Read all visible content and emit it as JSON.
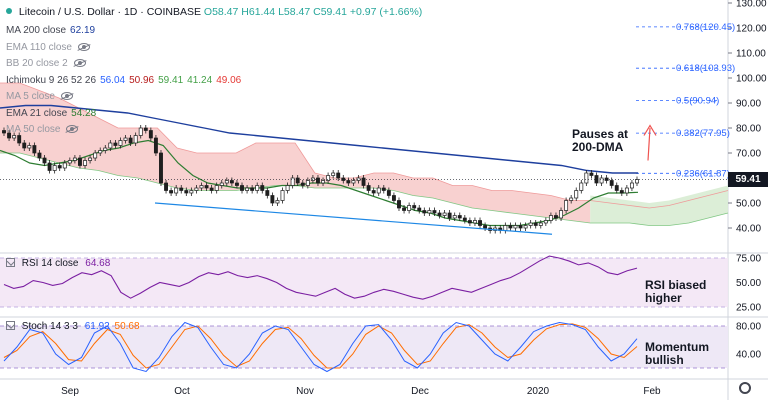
{
  "header": {
    "symbol": "Litecoin / U.S. Dollar · 1D · COINBASE",
    "open": "O58.47",
    "high": "H61.44",
    "low": "L58.47",
    "close": "C59.41",
    "change": "+0.97 (+1.66%)"
  },
  "indicators": [
    {
      "label": "MA 200 close",
      "value": "62.19",
      "value_color": "#1e3f9e",
      "muted": false,
      "eye": false
    },
    {
      "label": "EMA 110 close",
      "value": "",
      "value_color": "#9598a1",
      "muted": true,
      "eye": true
    },
    {
      "label": "BB 20 close 2",
      "value": "",
      "value_color": "#9598a1",
      "muted": true,
      "eye": true
    },
    {
      "label": "Ichimoku 9 26 52 26",
      "value": "",
      "value_color": "#434651",
      "muted": false,
      "eye": false,
      "values": [
        {
          "v": "56.04",
          "c": "#2962ff"
        },
        {
          "v": "50.96",
          "c": "#b71c1c"
        },
        {
          "v": "59.41",
          "c": "#43a047"
        },
        {
          "v": "41.24",
          "c": "#43a047"
        },
        {
          "v": "49.06",
          "c": "#e53935"
        }
      ]
    },
    {
      "label": "MA 5 close",
      "value": "",
      "value_color": "#9598a1",
      "muted": true,
      "eye": true
    },
    {
      "label": "EMA 21 close",
      "value": "54.28",
      "value_color": "#2e7d32",
      "muted": false,
      "eye": false
    },
    {
      "label": "MA 50 close",
      "value": "",
      "value_color": "#9598a1",
      "muted": true,
      "eye": true
    }
  ],
  "annotations": {
    "dma": "Pauses at\n200-DMA",
    "rsi": "RSI biased\nhigher",
    "momentum": "Momentum\nbullish"
  },
  "rsi_legend": {
    "label": "RSI 14 close",
    "value": "64.68"
  },
  "stoch_legend": {
    "label": "Stoch 14 3 3",
    "k": "61.92",
    "d": "50.68"
  },
  "current_price": "59.41",
  "colors": {
    "up": "#26a69a",
    "down": "#ef5350",
    "candle": "#1f1f1f",
    "ma200": "#1e3f9e",
    "ema21": "#2e7d32",
    "cloud_red": "#f7c9c8",
    "cloud_green": "#d8ecd3",
    "trend": "#1e88e5",
    "fib": "#2962ff",
    "arrow": "#ef5350",
    "rsi": "#7b1fa2"
  },
  "chart_data": [
    {
      "type": "candlestick",
      "ylim": [
        30,
        130
      ],
      "yticks": [
        40,
        50,
        60,
        70,
        80,
        90,
        100,
        110,
        120,
        130
      ],
      "x_labels": [
        "Sep",
        "Oct",
        "Nov",
        "Dec",
        "2020",
        "Feb"
      ],
      "close": [
        78,
        76,
        77,
        74,
        72,
        73,
        70,
        68,
        66,
        63,
        65,
        64,
        66,
        67,
        68,
        65,
        67,
        68,
        70,
        71,
        72,
        74,
        73,
        75,
        76,
        74,
        77,
        80,
        79,
        76,
        70,
        58,
        55,
        54,
        56,
        55,
        54,
        55,
        56,
        57,
        56,
        55,
        57,
        58,
        59,
        58,
        57,
        55,
        56,
        55,
        57,
        55,
        53,
        50,
        51,
        55,
        57,
        60,
        58,
        57,
        59,
        60,
        58,
        59,
        61,
        62,
        60,
        59,
        58,
        59,
        60,
        57,
        55,
        54,
        56,
        55,
        53,
        51,
        48,
        47,
        49,
        48,
        47,
        46,
        47,
        46,
        45,
        46,
        44,
        45,
        44,
        43,
        42,
        43,
        41,
        40,
        39,
        40,
        39,
        41,
        40,
        41,
        40,
        41,
        42,
        41,
        42,
        43,
        45,
        44,
        47,
        51,
        52,
        55,
        58,
        62,
        61,
        58,
        60,
        59,
        57,
        55,
        54,
        56,
        58,
        59.41
      ],
      "fib_levels": [
        {
          "label": "0.768(120.45)",
          "price": 120.45
        },
        {
          "label": "0.618(103.93)",
          "price": 103.93
        },
        {
          "label": "0.5(90.94)",
          "price": 90.94
        },
        {
          "label": "0.382(77.95)",
          "price": 77.95
        },
        {
          "label": "0.236(61.87)",
          "price": 61.87
        }
      ],
      "series_ma200": [
        88,
        89,
        89,
        88,
        87,
        86,
        84,
        82,
        80,
        78,
        77,
        76,
        75,
        74,
        73,
        72,
        71,
        70,
        69,
        68,
        67,
        66,
        65,
        63,
        62,
        62
      ],
      "series_ema21": [
        71,
        69,
        66,
        65,
        66,
        67,
        69,
        71,
        72,
        74,
        75,
        73,
        66,
        61,
        58,
        57,
        56,
        56,
        56,
        57,
        57,
        58,
        58,
        57,
        55,
        53,
        51,
        49,
        47,
        46,
        44,
        43,
        42,
        41,
        41,
        41,
        42,
        43,
        45,
        48,
        52,
        54,
        54,
        54.28
      ],
      "cloud_top": [
        98,
        98,
        95,
        92,
        88,
        84,
        80,
        80,
        80,
        72,
        70,
        70,
        70,
        74,
        74,
        74,
        62,
        60,
        60,
        62,
        62,
        60,
        60,
        57,
        57,
        55,
        55,
        54,
        53,
        51,
        51,
        50,
        49,
        48,
        49,
        51,
        53,
        55
      ],
      "cloud_bottom": [
        70,
        70,
        68,
        66,
        64,
        63,
        61,
        60,
        58,
        56,
        55,
        55,
        55,
        56,
        57,
        57,
        56,
        56,
        56,
        56,
        55,
        53,
        52,
        50,
        48,
        47,
        46,
        45,
        44,
        43,
        42,
        42,
        42,
        41,
        41,
        42,
        44,
        46
      ]
    },
    {
      "type": "line",
      "name": "RSI 14 close",
      "ylim": [
        20,
        80
      ],
      "yticks": [
        25,
        50,
        75
      ],
      "values": [
        48,
        44,
        46,
        52,
        50,
        47,
        49,
        55,
        60,
        58,
        62,
        57,
        40,
        34,
        39,
        45,
        50,
        48,
        46,
        50,
        56,
        60,
        58,
        61,
        57,
        55,
        57,
        54,
        50,
        44,
        40,
        38,
        36,
        40,
        44,
        38,
        34,
        36,
        40,
        43,
        41,
        38,
        35,
        33,
        36,
        40,
        44,
        42,
        40,
        44,
        48,
        52,
        55,
        60,
        66,
        72,
        77,
        75,
        72,
        68,
        70,
        66,
        60,
        58,
        62,
        64.68
      ]
    },
    {
      "type": "line",
      "name": "Stoch 14 3 3",
      "ylim": [
        10,
        90
      ],
      "yticks": [
        40,
        80
      ],
      "k": [
        30,
        50,
        75,
        70,
        40,
        25,
        35,
        70,
        80,
        55,
        20,
        15,
        35,
        65,
        85,
        78,
        50,
        25,
        20,
        40,
        70,
        80,
        75,
        50,
        25,
        15,
        25,
        55,
        80,
        82,
        60,
        30,
        20,
        40,
        70,
        85,
        80,
        60,
        40,
        30,
        50,
        72,
        80,
        85,
        82,
        75,
        50,
        30,
        40,
        61.92
      ],
      "d": [
        35,
        45,
        65,
        72,
        55,
        32,
        30,
        55,
        75,
        68,
        38,
        20,
        25,
        50,
        75,
        80,
        62,
        38,
        22,
        30,
        55,
        75,
        78,
        62,
        38,
        20,
        20,
        40,
        68,
        80,
        70,
        45,
        25,
        30,
        55,
        78,
        82,
        70,
        50,
        35,
        40,
        60,
        76,
        82,
        83,
        78,
        62,
        40,
        35,
        50.68
      ]
    }
  ]
}
